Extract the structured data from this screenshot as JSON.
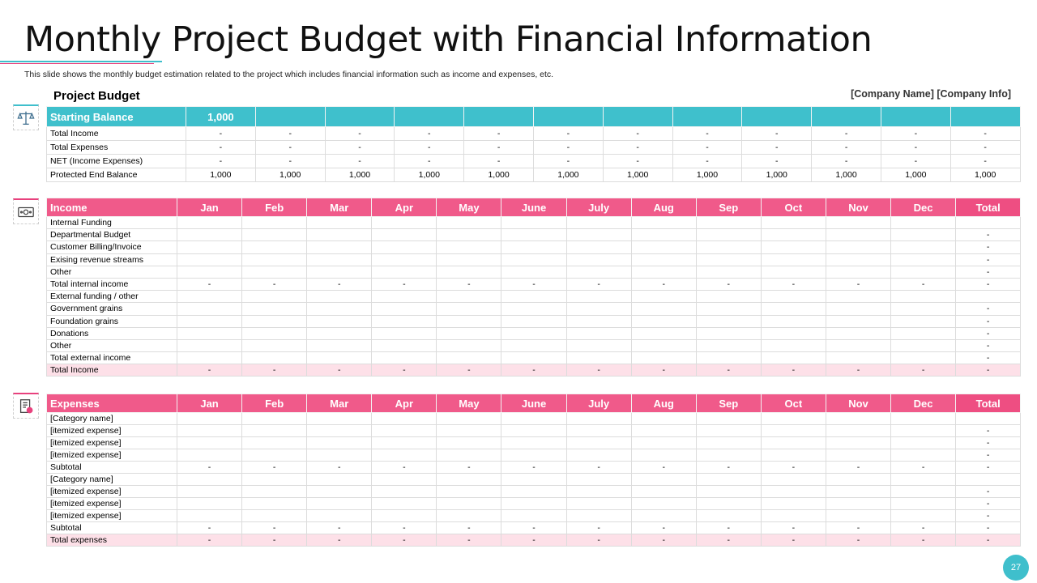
{
  "title": "Monthly Project Budget with Financial Information",
  "subtitle": "This slide shows the monthly budget estimation related to the project which includes financial information such as income and expenses, etc.",
  "project_budget_label": "Project Budget",
  "company_info": "[Company Name] [Company Info]",
  "page_number": "27",
  "colors": {
    "teal": "#3fc0cc",
    "pink": "#f05a8a",
    "pink_light": "#fde0e8"
  },
  "icons": {
    "budget": "balance-scale-icon",
    "income": "money-icon",
    "expenses": "receipt-icon"
  },
  "budget": {
    "header": [
      "Starting Balance",
      "1,000",
      "",
      "",
      "",
      "",
      "",
      "",
      "",
      "",
      "",
      "",
      ""
    ],
    "rows": [
      [
        "Total Income",
        "-",
        "-",
        "-",
        "-",
        "-",
        "-",
        "-",
        "-",
        "-",
        "-",
        "-",
        "-"
      ],
      [
        "Total Expenses",
        "-",
        "-",
        "-",
        "-",
        "-",
        "-",
        "-",
        "-",
        "-",
        "-",
        "-",
        "-"
      ],
      [
        "NET  (Income Expenses)",
        "-",
        "-",
        "-",
        "-",
        "-",
        "-",
        "-",
        "-",
        "-",
        "-",
        "-",
        "-"
      ],
      [
        "Protected End Balance",
        "1,000",
        "1,000",
        "1,000",
        "1,000",
        "1,000",
        "1,000",
        "1,000",
        "1,000",
        "1,000",
        "1,000",
        "1,000",
        "1,000"
      ]
    ]
  },
  "income": {
    "header": [
      "Income",
      "Jan",
      "Feb",
      "Mar",
      "Apr",
      "May",
      "June",
      "July",
      "Aug",
      "Sep",
      "Oct",
      "Nov",
      "Dec",
      "Total"
    ],
    "rows": [
      [
        "Internal Funding",
        "",
        "",
        "",
        "",
        "",
        "",
        "",
        "",
        "",
        "",
        "",
        "",
        ""
      ],
      [
        "Departmental Budget",
        "",
        "",
        "",
        "",
        "",
        "",
        "",
        "",
        "",
        "",
        "",
        "",
        "-"
      ],
      [
        "Customer Billing/Invoice",
        "",
        "",
        "",
        "",
        "",
        "",
        "",
        "",
        "",
        "",
        "",
        "",
        "-"
      ],
      [
        "Exising revenue streams",
        "",
        "",
        "",
        "",
        "",
        "",
        "",
        "",
        "",
        "",
        "",
        "",
        "-"
      ],
      [
        "Other",
        "",
        "",
        "",
        "",
        "",
        "",
        "",
        "",
        "",
        "",
        "",
        "",
        "-"
      ],
      [
        "Total internal income",
        "-",
        "-",
        "-",
        "-",
        "-",
        "-",
        "-",
        "-",
        "-",
        "-",
        "-",
        "-",
        "-"
      ],
      [
        "External funding / other",
        "",
        "",
        "",
        "",
        "",
        "",
        "",
        "",
        "",
        "",
        "",
        "",
        ""
      ],
      [
        "Government grains",
        "",
        "",
        "",
        "",
        "",
        "",
        "",
        "",
        "",
        "",
        "",
        "",
        "-"
      ],
      [
        "Foundation grains",
        "",
        "",
        "",
        "",
        "",
        "",
        "",
        "",
        "",
        "",
        "",
        "",
        "-"
      ],
      [
        "Donations",
        "",
        "",
        "",
        "",
        "",
        "",
        "",
        "",
        "",
        "",
        "",
        "",
        "-"
      ],
      [
        "Other",
        "",
        "",
        "",
        "",
        "",
        "",
        "",
        "",
        "",
        "",
        "",
        "",
        "-"
      ],
      [
        "Total external income",
        "",
        "",
        "",
        "",
        "",
        "",
        "",
        "",
        "",
        "",
        "",
        "",
        "-"
      ],
      [
        "Total Income",
        "-",
        "-",
        "-",
        "-",
        "-",
        "-",
        "-",
        "-",
        "-",
        "-",
        "-",
        "-",
        "-"
      ]
    ]
  },
  "expenses": {
    "header": [
      "Expenses",
      "Jan",
      "Feb",
      "Mar",
      "Apr",
      "May",
      "June",
      "July",
      "Aug",
      "Sep",
      "Oct",
      "Nov",
      "Dec",
      "Total"
    ],
    "rows": [
      [
        "[Category name]",
        "",
        "",
        "",
        "",
        "",
        "",
        "",
        "",
        "",
        "",
        "",
        "",
        ""
      ],
      [
        "[itemized expense]",
        "",
        "",
        "",
        "",
        "",
        "",
        "",
        "",
        "",
        "",
        "",
        "",
        "-"
      ],
      [
        "[itemized expense]",
        "",
        "",
        "",
        "",
        "",
        "",
        "",
        "",
        "",
        "",
        "",
        "",
        "-"
      ],
      [
        "[itemized expense]",
        "",
        "",
        "",
        "",
        "",
        "",
        "",
        "",
        "",
        "",
        "",
        "",
        "-"
      ],
      [
        "Subtotal",
        "-",
        "-",
        "-",
        "-",
        "-",
        "-",
        "-",
        "-",
        "-",
        "-",
        "-",
        "-",
        "-"
      ],
      [
        "[Category name]",
        "",
        "",
        "",
        "",
        "",
        "",
        "",
        "",
        "",
        "",
        "",
        "",
        ""
      ],
      [
        "[itemized expense]",
        "",
        "",
        "",
        "",
        "",
        "",
        "",
        "",
        "",
        "",
        "",
        "",
        "-"
      ],
      [
        "[itemized expense]",
        "",
        "",
        "",
        "",
        "",
        "",
        "",
        "",
        "",
        "",
        "",
        "",
        "-"
      ],
      [
        "[itemized expense]",
        "",
        "",
        "",
        "",
        "",
        "",
        "",
        "",
        "",
        "",
        "",
        "",
        "-"
      ],
      [
        "Subtotal",
        "-",
        "-",
        "-",
        "-",
        "-",
        "-",
        "-",
        "-",
        "-",
        "-",
        "-",
        "-",
        "-"
      ],
      [
        "Total expenses",
        "-",
        "-",
        "-",
        "-",
        "-",
        "-",
        "-",
        "-",
        "-",
        "-",
        "-",
        "-",
        "-"
      ]
    ]
  }
}
